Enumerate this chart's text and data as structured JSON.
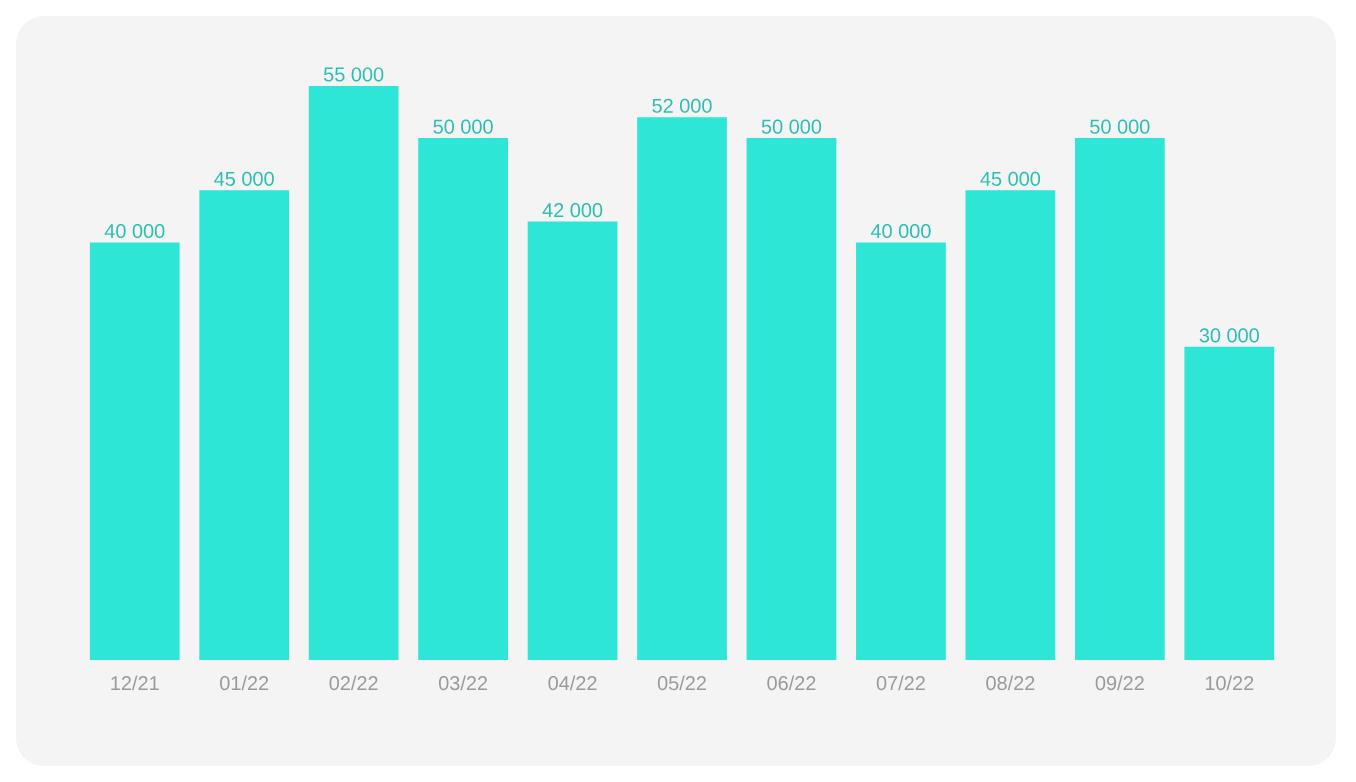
{
  "chart_data": {
    "type": "bar",
    "categories": [
      "12/21",
      "01/22",
      "02/22",
      "03/22",
      "04/22",
      "05/22",
      "06/22",
      "07/22",
      "08/22",
      "09/22",
      "10/22"
    ],
    "values": [
      40000,
      45000,
      55000,
      50000,
      42000,
      52000,
      50000,
      40000,
      45000,
      50000,
      30000
    ],
    "value_labels": [
      "40 000",
      "45 000",
      "55 000",
      "50 000",
      "42 000",
      "52 000",
      "50 000",
      "40 000",
      "45 000",
      "50 000",
      "30 000"
    ],
    "color": "#2ee6d6"
  }
}
